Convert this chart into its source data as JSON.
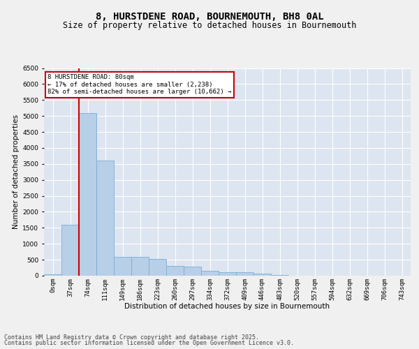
{
  "title": "8, HURSTDENE ROAD, BOURNEMOUTH, BH8 0AL",
  "subtitle": "Size of property relative to detached houses in Bournemouth",
  "xlabel": "Distribution of detached houses by size in Bournemouth",
  "ylabel": "Number of detached properties",
  "categories": [
    "0sqm",
    "37sqm",
    "74sqm",
    "111sqm",
    "149sqm",
    "186sqm",
    "223sqm",
    "260sqm",
    "297sqm",
    "334sqm",
    "372sqm",
    "409sqm",
    "446sqm",
    "483sqm",
    "520sqm",
    "557sqm",
    "594sqm",
    "632sqm",
    "669sqm",
    "706sqm",
    "743sqm"
  ],
  "values": [
    50,
    1600,
    5100,
    3600,
    580,
    580,
    530,
    300,
    280,
    160,
    120,
    100,
    60,
    15,
    8,
    5,
    3,
    2,
    2,
    1,
    1
  ],
  "bar_color": "#b8cfe8",
  "bar_edge_color": "#7aadd4",
  "vline_color": "#cc0000",
  "annotation_text": "8 HURSTDENE ROAD: 80sqm\n← 17% of detached houses are smaller (2,238)\n82% of semi-detached houses are larger (10,662) →",
  "annotation_box_color": "#ffffff",
  "annotation_box_edge": "#cc0000",
  "ylim": [
    0,
    6500
  ],
  "background_color": "#dde5f0",
  "grid_color": "#ffffff",
  "footer_line1": "Contains HM Land Registry data © Crown copyright and database right 2025.",
  "footer_line2": "Contains public sector information licensed under the Open Government Licence v3.0.",
  "title_fontsize": 10,
  "subtitle_fontsize": 8.5,
  "tick_fontsize": 6.5,
  "label_fontsize": 7.5,
  "footer_fontsize": 6,
  "ann_fontsize": 6.5
}
